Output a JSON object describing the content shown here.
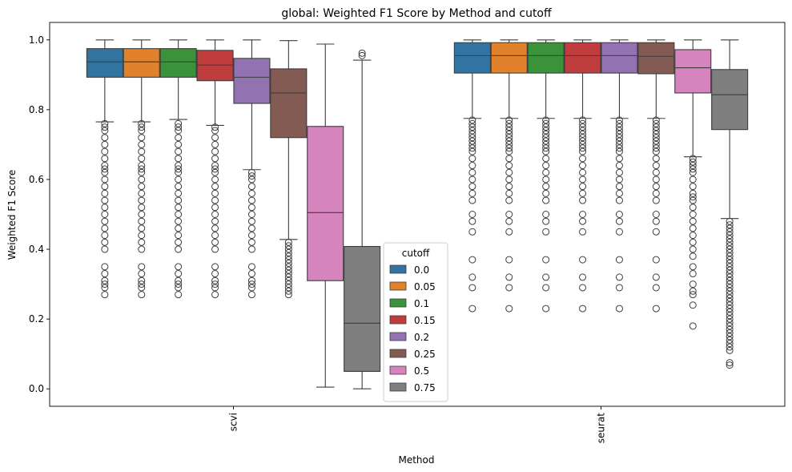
{
  "chart_data": {
    "type": "box",
    "title": "global: Weighted F1 Score by Method and cutoff",
    "xlabel": "Method",
    "ylabel": "Weighted F1 Score",
    "ylim": [
      -0.05,
      1.05
    ],
    "yticks": [
      "0.0",
      "0.2",
      "0.4",
      "0.6",
      "0.8",
      "1.0"
    ],
    "categories": [
      "scvi",
      "seurat"
    ],
    "legend": {
      "title": "cutoff",
      "placement": "lower-center"
    },
    "series": [
      {
        "name": "0.0",
        "color": "#3274a1",
        "boxes": [
          {
            "category": "scvi",
            "whislo": 0.765,
            "q1": 0.893,
            "med": 0.937,
            "q3": 0.975,
            "whishi": 1.0,
            "fliers": [
              0.76,
              0.75,
              0.74,
              0.72,
              0.7,
              0.68,
              0.66,
              0.64,
              0.63,
              0.62,
              0.6,
              0.58,
              0.56,
              0.54,
              0.52,
              0.5,
              0.48,
              0.46,
              0.44,
              0.42,
              0.4,
              0.35,
              0.33,
              0.31,
              0.3,
              0.29,
              0.27
            ]
          },
          {
            "category": "seurat",
            "whislo": 0.775,
            "q1": 0.905,
            "med": 0.955,
            "q3": 0.992,
            "whishi": 1.0,
            "fliers": [
              0.77,
              0.76,
              0.75,
              0.74,
              0.73,
              0.72,
              0.71,
              0.7,
              0.69,
              0.68,
              0.66,
              0.64,
              0.62,
              0.6,
              0.58,
              0.56,
              0.54,
              0.5,
              0.48,
              0.45,
              0.37,
              0.32,
              0.29,
              0.23
            ]
          }
        ]
      },
      {
        "name": "0.05",
        "color": "#e1812c",
        "boxes": [
          {
            "category": "scvi",
            "whislo": 0.765,
            "q1": 0.893,
            "med": 0.937,
            "q3": 0.975,
            "whishi": 1.0,
            "fliers": [
              0.76,
              0.75,
              0.74,
              0.72,
              0.7,
              0.68,
              0.66,
              0.64,
              0.63,
              0.62,
              0.6,
              0.58,
              0.56,
              0.54,
              0.52,
              0.5,
              0.48,
              0.46,
              0.44,
              0.42,
              0.4,
              0.35,
              0.33,
              0.31,
              0.3,
              0.29,
              0.27
            ]
          },
          {
            "category": "seurat",
            "whislo": 0.775,
            "q1": 0.905,
            "med": 0.955,
            "q3": 0.992,
            "whishi": 1.0,
            "fliers": [
              0.77,
              0.76,
              0.75,
              0.74,
              0.73,
              0.72,
              0.71,
              0.7,
              0.69,
              0.68,
              0.66,
              0.64,
              0.62,
              0.6,
              0.58,
              0.56,
              0.54,
              0.5,
              0.48,
              0.45,
              0.37,
              0.32,
              0.29,
              0.23
            ]
          }
        ]
      },
      {
        "name": "0.1",
        "color": "#3a923a",
        "boxes": [
          {
            "category": "scvi",
            "whislo": 0.772,
            "q1": 0.893,
            "med": 0.937,
            "q3": 0.975,
            "whishi": 1.0,
            "fliers": [
              0.76,
              0.75,
              0.74,
              0.72,
              0.7,
              0.68,
              0.66,
              0.64,
              0.63,
              0.62,
              0.6,
              0.58,
              0.56,
              0.54,
              0.52,
              0.5,
              0.48,
              0.46,
              0.44,
              0.42,
              0.4,
              0.35,
              0.33,
              0.31,
              0.3,
              0.29,
              0.27
            ]
          },
          {
            "category": "seurat",
            "whislo": 0.775,
            "q1": 0.905,
            "med": 0.955,
            "q3": 0.992,
            "whishi": 1.0,
            "fliers": [
              0.77,
              0.76,
              0.75,
              0.74,
              0.73,
              0.72,
              0.71,
              0.7,
              0.69,
              0.68,
              0.66,
              0.64,
              0.62,
              0.6,
              0.58,
              0.56,
              0.54,
              0.5,
              0.48,
              0.45,
              0.37,
              0.32,
              0.29,
              0.23
            ]
          }
        ]
      },
      {
        "name": "0.15",
        "color": "#c03d3e",
        "boxes": [
          {
            "category": "scvi",
            "whislo": 0.755,
            "q1": 0.883,
            "med": 0.928,
            "q3": 0.97,
            "whishi": 1.0,
            "fliers": [
              0.75,
              0.74,
              0.72,
              0.7,
              0.68,
              0.66,
              0.64,
              0.63,
              0.62,
              0.6,
              0.58,
              0.56,
              0.54,
              0.52,
              0.5,
              0.48,
              0.46,
              0.44,
              0.42,
              0.4,
              0.35,
              0.33,
              0.31,
              0.3,
              0.29,
              0.27
            ]
          },
          {
            "category": "seurat",
            "whislo": 0.775,
            "q1": 0.905,
            "med": 0.955,
            "q3": 0.992,
            "whishi": 1.0,
            "fliers": [
              0.77,
              0.76,
              0.75,
              0.74,
              0.73,
              0.72,
              0.71,
              0.7,
              0.69,
              0.68,
              0.66,
              0.64,
              0.62,
              0.6,
              0.58,
              0.56,
              0.54,
              0.5,
              0.48,
              0.45,
              0.37,
              0.32,
              0.29,
              0.23
            ]
          }
        ]
      },
      {
        "name": "0.2",
        "color": "#9372b2",
        "boxes": [
          {
            "category": "scvi",
            "whislo": 0.628,
            "q1": 0.818,
            "med": 0.893,
            "q3": 0.947,
            "whishi": 1.0,
            "fliers": [
              0.62,
              0.61,
              0.6,
              0.58,
              0.56,
              0.54,
              0.52,
              0.5,
              0.48,
              0.46,
              0.44,
              0.42,
              0.4,
              0.35,
              0.33,
              0.31,
              0.3,
              0.29,
              0.27
            ]
          },
          {
            "category": "seurat",
            "whislo": 0.775,
            "q1": 0.905,
            "med": 0.955,
            "q3": 0.992,
            "whishi": 1.0,
            "fliers": [
              0.77,
              0.76,
              0.75,
              0.74,
              0.73,
              0.72,
              0.71,
              0.7,
              0.69,
              0.68,
              0.66,
              0.64,
              0.62,
              0.6,
              0.58,
              0.56,
              0.54,
              0.5,
              0.48,
              0.45,
              0.37,
              0.32,
              0.29,
              0.23
            ]
          }
        ]
      },
      {
        "name": "0.25",
        "color": "#845b53",
        "boxes": [
          {
            "category": "scvi",
            "whislo": 0.428,
            "q1": 0.72,
            "med": 0.848,
            "q3": 0.917,
            "whishi": 0.998,
            "fliers": [
              0.42,
              0.41,
              0.4,
              0.39,
              0.38,
              0.37,
              0.36,
              0.35,
              0.34,
              0.33,
              0.32,
              0.31,
              0.3,
              0.29,
              0.28,
              0.27
            ]
          },
          {
            "category": "seurat",
            "whislo": 0.775,
            "q1": 0.903,
            "med": 0.953,
            "q3": 0.992,
            "whishi": 1.0,
            "fliers": [
              0.77,
              0.76,
              0.75,
              0.74,
              0.73,
              0.72,
              0.71,
              0.7,
              0.69,
              0.68,
              0.66,
              0.64,
              0.62,
              0.6,
              0.58,
              0.56,
              0.54,
              0.5,
              0.48,
              0.45,
              0.37,
              0.32,
              0.29,
              0.23
            ]
          }
        ]
      },
      {
        "name": "0.5",
        "color": "#d684bd",
        "boxes": [
          {
            "category": "scvi",
            "whislo": 0.005,
            "q1": 0.31,
            "med": 0.505,
            "q3": 0.752,
            "whishi": 0.988,
            "fliers": []
          },
          {
            "category": "seurat",
            "whislo": 0.665,
            "q1": 0.848,
            "med": 0.92,
            "q3": 0.972,
            "whishi": 1.0,
            "fliers": [
              0.66,
              0.65,
              0.64,
              0.63,
              0.62,
              0.6,
              0.58,
              0.56,
              0.55,
              0.54,
              0.52,
              0.5,
              0.48,
              0.46,
              0.44,
              0.42,
              0.4,
              0.38,
              0.35,
              0.33,
              0.3,
              0.28,
              0.27,
              0.24,
              0.18
            ]
          }
        ]
      },
      {
        "name": "0.75",
        "color": "#7f7f7f",
        "boxes": [
          {
            "category": "scvi",
            "whislo": 0.0,
            "q1": 0.05,
            "med": 0.188,
            "q3": 0.408,
            "whishi": 0.942,
            "fliers": [
              0.955,
              0.962
            ]
          },
          {
            "category": "seurat",
            "whislo": 0.488,
            "q1": 0.743,
            "med": 0.843,
            "q3": 0.915,
            "whishi": 1.0,
            "fliers": [
              0.48,
              0.47,
              0.46,
              0.45,
              0.44,
              0.43,
              0.42,
              0.41,
              0.4,
              0.39,
              0.38,
              0.37,
              0.36,
              0.35,
              0.34,
              0.33,
              0.32,
              0.31,
              0.3,
              0.29,
              0.28,
              0.27,
              0.26,
              0.25,
              0.24,
              0.23,
              0.22,
              0.21,
              0.2,
              0.19,
              0.18,
              0.17,
              0.16,
              0.15,
              0.14,
              0.13,
              0.12,
              0.11,
              0.075,
              0.068
            ]
          }
        ]
      }
    ]
  }
}
